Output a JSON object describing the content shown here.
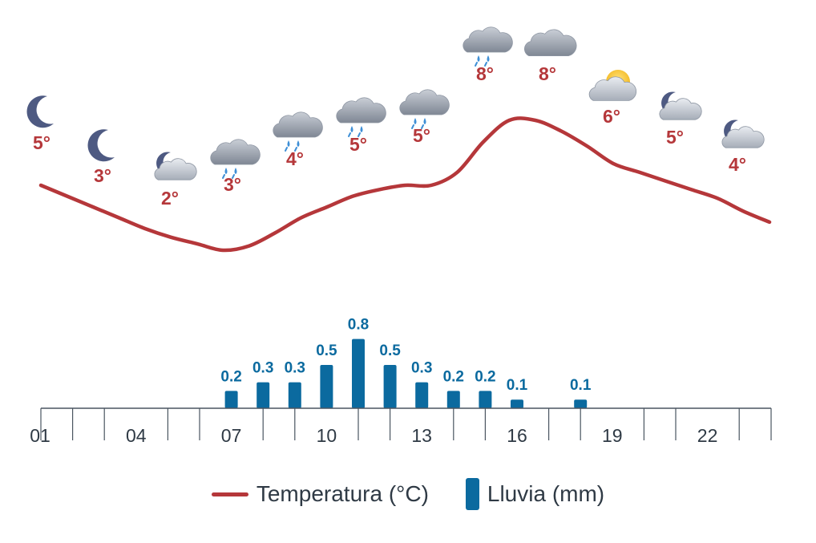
{
  "chart_data": {
    "type": "line+bar",
    "hours": [
      "01",
      "02",
      "03",
      "04",
      "05",
      "06",
      "07",
      "08",
      "09",
      "10",
      "11",
      "12",
      "13",
      "14",
      "15",
      "16",
      "17",
      "18",
      "19",
      "20",
      "21",
      "22",
      "23",
      "24"
    ],
    "x_tick_labels": [
      "01",
      "04",
      "07",
      "10",
      "13",
      "16",
      "19",
      "22"
    ],
    "temperature_series": {
      "name": "Temperatura (°C)",
      "color": "#b5373a",
      "labels": [
        {
          "hour": 1,
          "value": "5°",
          "icon": "moon-icon"
        },
        {
          "hour": 3,
          "value": "3°",
          "icon": "moon-icon"
        },
        {
          "hour": 5,
          "value": "2°",
          "icon": "moon-cloud-icon"
        },
        {
          "hour": 7,
          "value": "3°",
          "icon": "rain-cloud-icon"
        },
        {
          "hour": 9,
          "value": "4°",
          "icon": "rain-cloud-icon"
        },
        {
          "hour": 11,
          "value": "5°",
          "icon": "rain-cloud-icon"
        },
        {
          "hour": 13,
          "value": "5°",
          "icon": "rain-cloud-icon"
        },
        {
          "hour": 15,
          "value": "8°",
          "icon": "rain-cloud-icon"
        },
        {
          "hour": 17,
          "value": "8°",
          "icon": "cloud-icon"
        },
        {
          "hour": 19,
          "value": "6°",
          "icon": "sun-cloud-icon"
        },
        {
          "hour": 21,
          "value": "5°",
          "icon": "moon-cloud-icon"
        },
        {
          "hour": 23,
          "value": "4°",
          "icon": "moon-cloud-icon"
        }
      ],
      "curve": [
        5,
        4.5,
        4,
        3.5,
        3,
        2.6,
        2.3,
        2.0,
        2.2,
        2.8,
        3.5,
        4.0,
        4.5,
        4.8,
        5.0,
        5.0,
        5.6,
        7.0,
        8.0,
        8.0,
        7.5,
        6.8,
        6.0,
        5.6,
        5.2,
        4.8,
        4.4,
        3.8,
        3.3
      ]
    },
    "rain_series": {
      "name": "Lluvia (mm)",
      "color": "#0b6a9f",
      "bars": [
        {
          "hour": 7,
          "value": 0.2,
          "label": "0.2"
        },
        {
          "hour": 8,
          "value": 0.3,
          "label": "0.3"
        },
        {
          "hour": 9,
          "value": 0.3,
          "label": "0.3"
        },
        {
          "hour": 10,
          "value": 0.5,
          "label": "0.5"
        },
        {
          "hour": 11,
          "value": 0.8,
          "label": "0.8"
        },
        {
          "hour": 12,
          "value": 0.5,
          "label": "0.5"
        },
        {
          "hour": 13,
          "value": 0.3,
          "label": "0.3"
        },
        {
          "hour": 14,
          "value": 0.2,
          "label": "0.2"
        },
        {
          "hour": 15,
          "value": 0.2,
          "label": "0.2"
        },
        {
          "hour": 16,
          "value": 0.1,
          "label": "0.1"
        },
        {
          "hour": 18,
          "value": 0.1,
          "label": "0.1"
        }
      ]
    },
    "legend": {
      "placement": "bottom",
      "temperature_label": "Temperatura (°C)",
      "rain_label": "Lluvia (mm)"
    }
  }
}
